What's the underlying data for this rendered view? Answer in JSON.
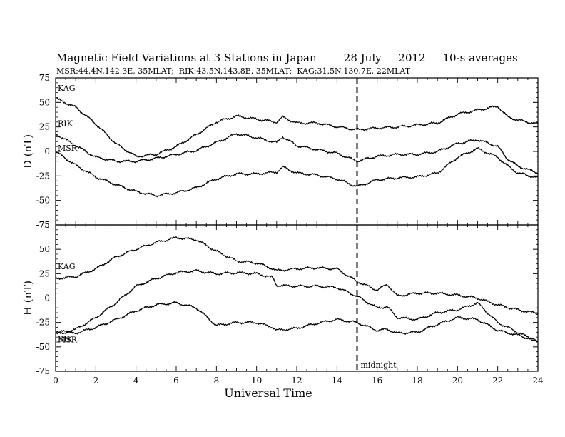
{
  "header": {
    "title": "Magnetic Field Variations at 3 Stations in Japan        28 July     2012     10-s averages",
    "subtitle": "MSR:44.4N,142.3E, 35MLAT;  RIK:43.5N,143.8E, 35MLAT;  KAG:31.5N,130.7E, 22MLAT"
  },
  "chart_data": [
    {
      "type": "line",
      "ylabel": "D (nT)",
      "xlabel": "",
      "xlim": [
        0,
        24
      ],
      "ylim": [
        -75,
        75
      ],
      "yticks": [
        75,
        50,
        25,
        0,
        -25,
        -50,
        -75
      ],
      "xticks": [
        0,
        2,
        4,
        6,
        8,
        10,
        12,
        14,
        16,
        18,
        20,
        22,
        24
      ],
      "series_labels": [
        {
          "text": "KAG"
        },
        {
          "text": "RIK"
        },
        {
          "text": "MSR"
        }
      ],
      "series": [
        {
          "name": "KAG",
          "x": [
            0,
            1,
            2,
            3,
            4,
            5,
            6,
            7,
            8,
            9,
            10,
            11,
            11.3,
            12,
            13,
            14,
            15,
            16,
            17,
            18,
            19,
            20,
            21,
            22,
            22.5,
            23,
            24
          ],
          "y": [
            54,
            45,
            28,
            8,
            -5,
            -3,
            5,
            17,
            30,
            36,
            33,
            30,
            35,
            29,
            29,
            25,
            22,
            24,
            25,
            27,
            29,
            38,
            42,
            46,
            35,
            32,
            28
          ]
        },
        {
          "name": "RIK",
          "x": [
            0,
            1,
            2,
            3,
            4,
            5,
            6,
            7,
            8,
            9,
            10,
            11,
            11.3,
            12,
            13,
            14,
            15,
            16,
            17,
            18,
            19,
            20,
            21,
            22,
            22.5,
            23,
            24
          ],
          "y": [
            18,
            6,
            -6,
            -10,
            -10,
            -7,
            -3,
            1,
            9,
            18,
            14,
            9,
            15,
            6,
            2,
            -2,
            -10,
            -5,
            -3,
            -3,
            0,
            8,
            12,
            5,
            -8,
            -15,
            -22
          ]
        },
        {
          "name": "MSR",
          "x": [
            0,
            1,
            2,
            3,
            4,
            5,
            6,
            7,
            8,
            9,
            10,
            11,
            11.3,
            12,
            13,
            14,
            15,
            16,
            17,
            18,
            19,
            20,
            21,
            22,
            22.5,
            23,
            24
          ],
          "y": [
            0,
            -14,
            -26,
            -34,
            -41,
            -45,
            -42,
            -37,
            -28,
            -23,
            -23,
            -21,
            -16,
            -22,
            -24,
            -28,
            -36,
            -29,
            -27,
            -26,
            -22,
            -6,
            3,
            -6,
            -15,
            -22,
            -27
          ]
        }
      ],
      "vline": {
        "x": 15,
        "style": "dashed"
      }
    },
    {
      "type": "line",
      "ylabel": "H (nT)",
      "xlabel": "Universal Time",
      "xlim": [
        0,
        24
      ],
      "ylim": [
        -75,
        75
      ],
      "yticks": [
        75,
        50,
        25,
        0,
        -25,
        -50,
        -75
      ],
      "xticks": [
        0,
        2,
        4,
        6,
        8,
        10,
        12,
        14,
        16,
        18,
        20,
        22,
        24
      ],
      "series_labels": [
        {
          "text": "KAG"
        },
        {
          "text": "RIK"
        },
        {
          "text": "MSR"
        }
      ],
      "series": [
        {
          "name": "KAG",
          "x": [
            0,
            1,
            2,
            3,
            4,
            5,
            6,
            7,
            8,
            9,
            10,
            10.8,
            11,
            12,
            13,
            14,
            15,
            16,
            16.5,
            17,
            18,
            19,
            20,
            21,
            22,
            23,
            24
          ],
          "y": [
            20,
            22,
            30,
            42,
            50,
            57,
            62,
            60,
            48,
            38,
            36,
            30,
            28,
            30,
            31,
            30,
            17,
            8,
            14,
            2,
            5,
            5,
            3,
            0,
            -7,
            -12,
            -16
          ]
        },
        {
          "name": "RIK",
          "x": [
            0,
            1,
            2,
            3,
            4,
            5,
            6,
            7,
            8,
            9,
            10,
            10.8,
            11,
            12,
            13,
            14,
            15,
            16,
            16.5,
            17,
            18,
            19,
            20,
            21,
            22,
            23,
            24
          ],
          "y": [
            -36,
            -32,
            -20,
            -5,
            12,
            20,
            26,
            28,
            25,
            26,
            25,
            21,
            13,
            12,
            12,
            11,
            2,
            -10,
            -9,
            -20,
            -22,
            -15,
            -12,
            -5,
            -25,
            -35,
            -45
          ]
        },
        {
          "name": "MSR",
          "x": [
            0,
            1,
            2,
            3,
            4,
            5,
            6,
            7,
            8,
            9,
            10,
            10.8,
            11,
            12,
            13,
            14,
            15,
            16,
            16.5,
            17,
            18,
            19,
            20,
            21,
            22,
            23,
            24
          ],
          "y": [
            -35,
            -36,
            -30,
            -22,
            -13,
            -7,
            -5,
            -10,
            -28,
            -25,
            -25,
            -30,
            -33,
            -31,
            -26,
            -22,
            -25,
            -33,
            -32,
            -36,
            -35,
            -27,
            -20,
            -22,
            -33,
            -38,
            -44
          ]
        }
      ],
      "vline": {
        "x": 15,
        "style": "dashed",
        "label": "midnight"
      }
    }
  ]
}
